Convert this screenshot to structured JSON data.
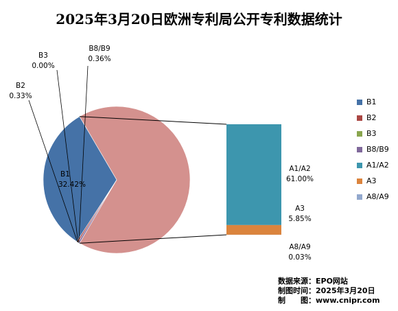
{
  "chart_data": {
    "type": "pie",
    "title": "2025年3月20日欧洲专利局公开专利数据统计",
    "categories": [
      "B1",
      "B2",
      "B3",
      "B8/B9",
      "A1/A2",
      "A3",
      "A8/A9"
    ],
    "values": [
      32.42,
      0.33,
      0.0,
      0.36,
      61.0,
      5.85,
      0.03
    ],
    "labels": [
      "32.42%",
      "0.33%",
      "0.00%",
      "0.36%",
      "61.00%",
      "5.85%",
      "0.03%"
    ],
    "colors": [
      "#4572A7",
      "#AA4643",
      "#89A54E",
      "#80699B",
      "#3D96AE",
      "#DB843D",
      "#92A8CD"
    ],
    "main_slice_color": "#D4918E",
    "legend_position": "right",
    "grid": false
  },
  "source": {
    "line1": "数据来源：EPO网站",
    "line2": "制图时间：2025年3月20日",
    "line3": "制　　图：www.cnipr.com"
  }
}
